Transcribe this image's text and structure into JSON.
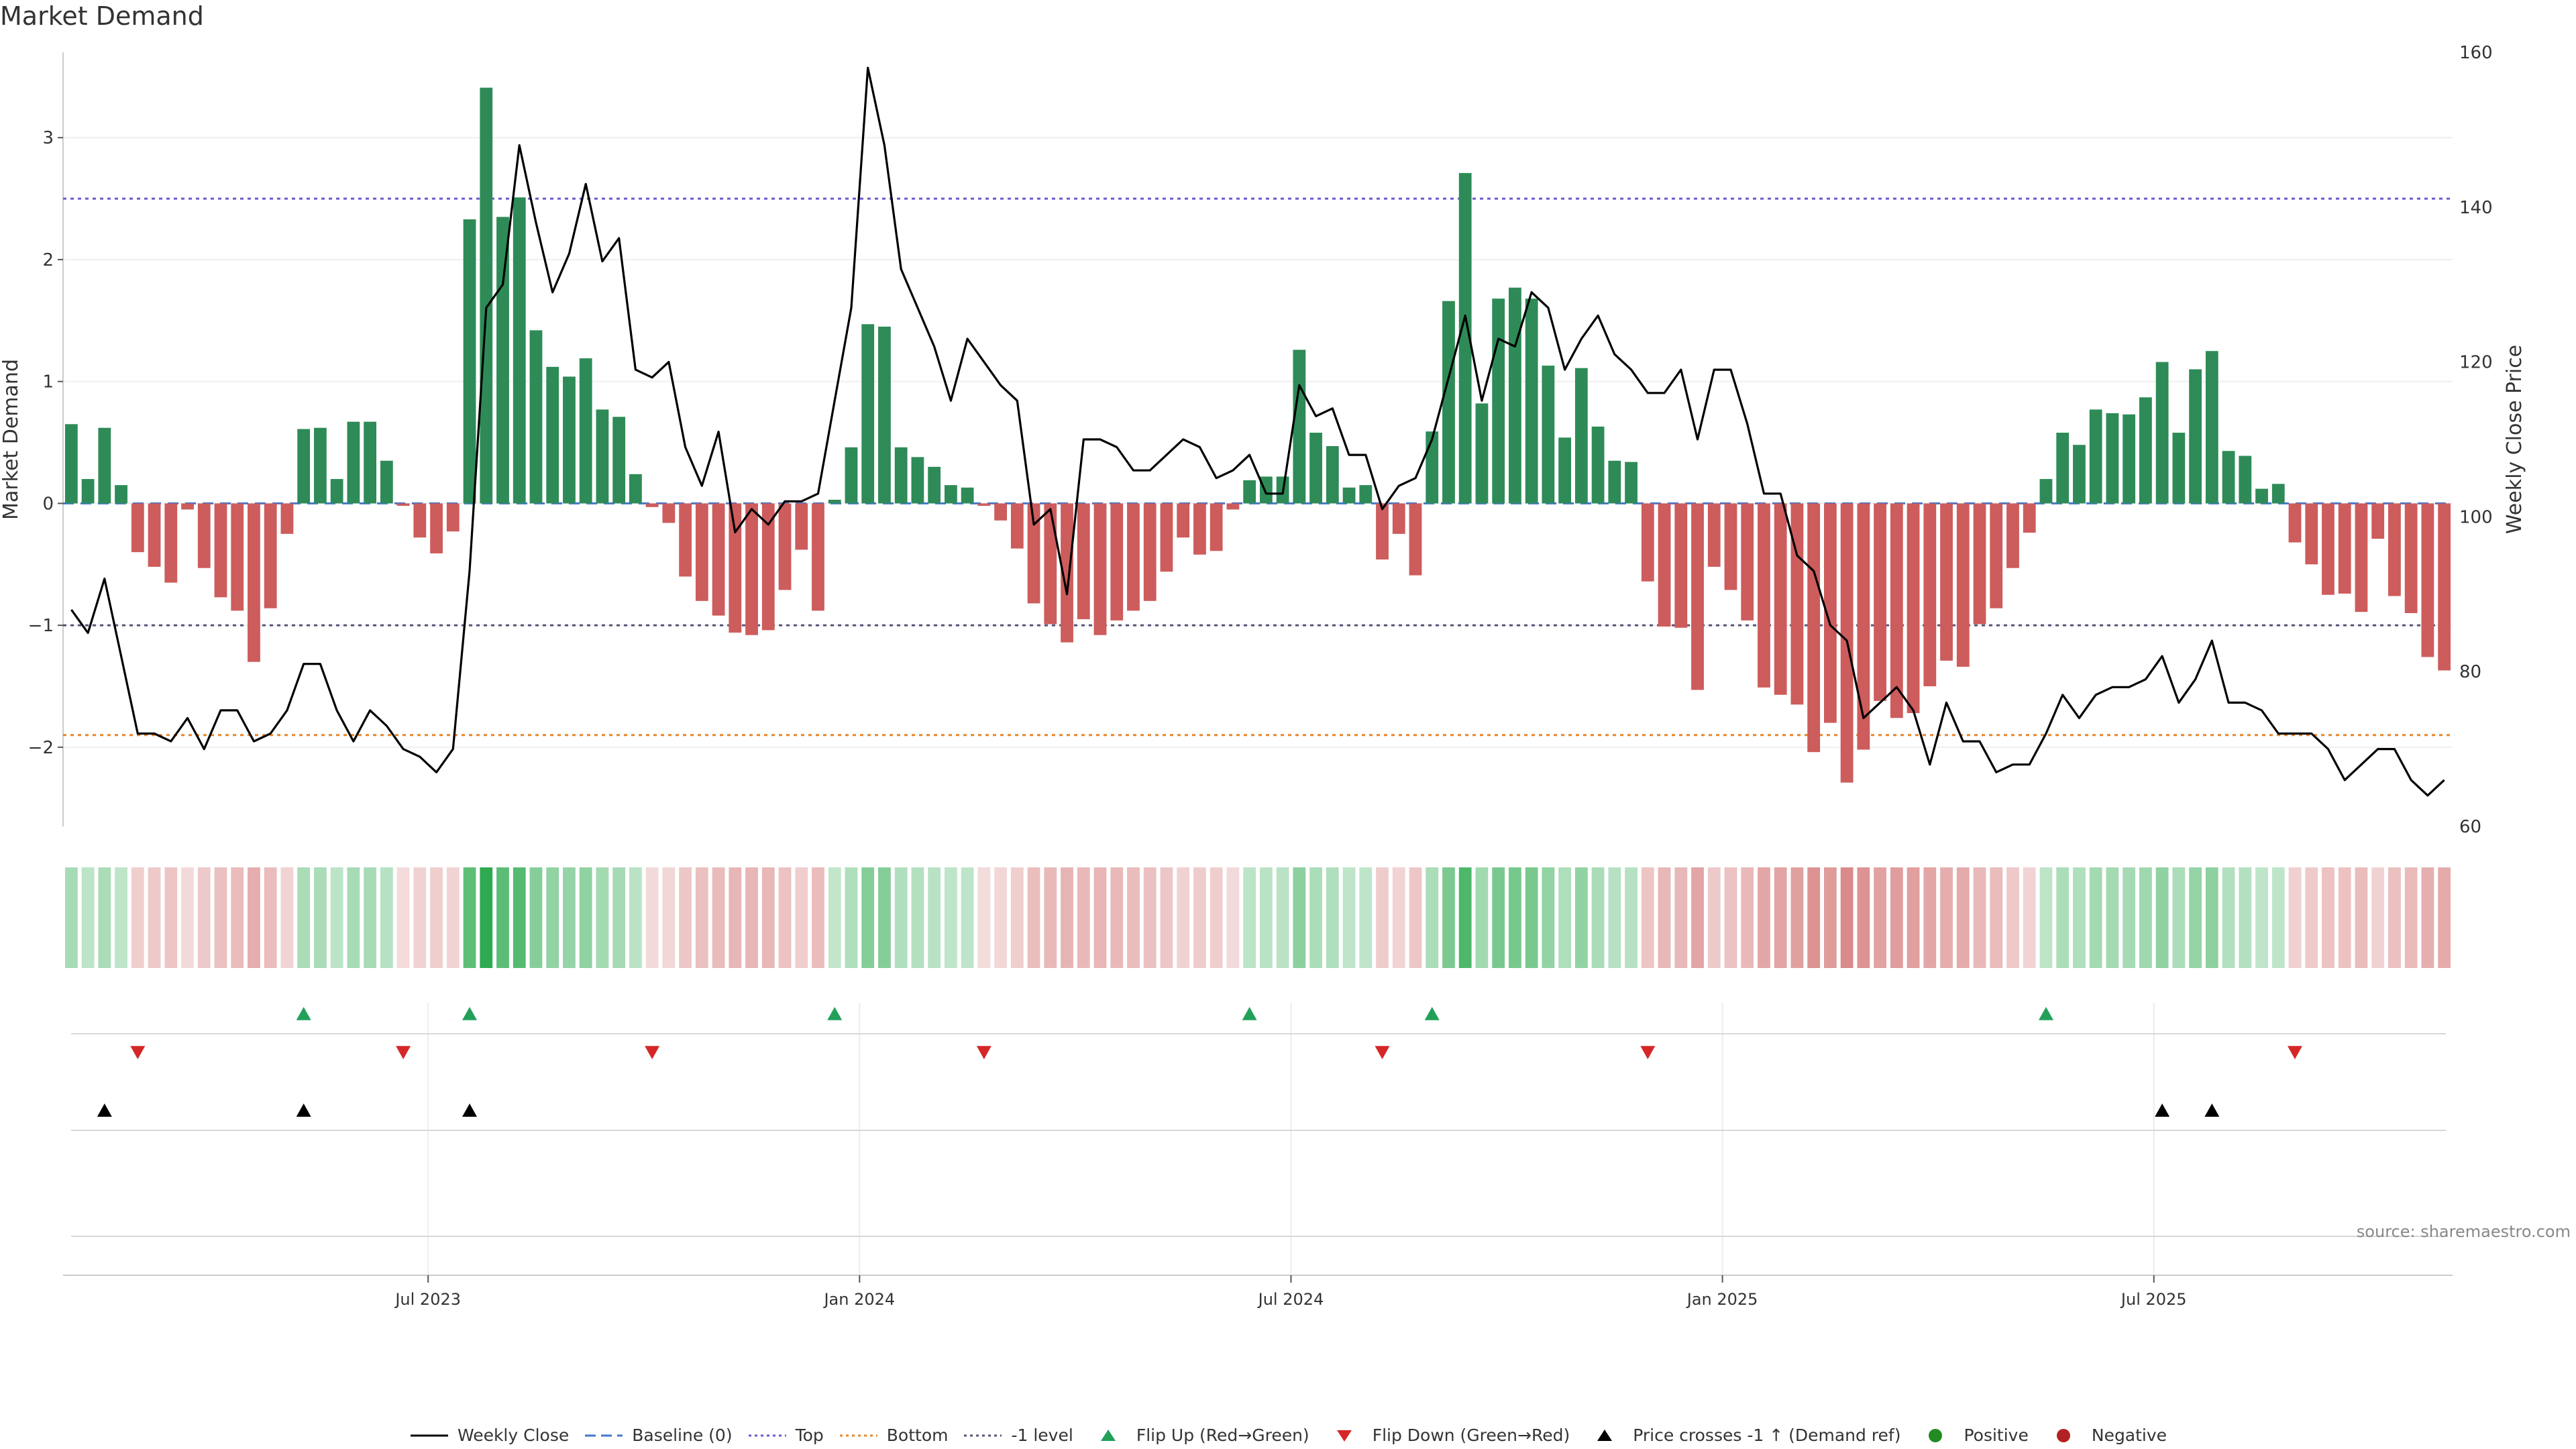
{
  "title": "Market Demand",
  "source": "source: sharemaestro.com",
  "colors": {
    "positive": "#2e8b57",
    "negative": "#cd5c5c",
    "price": "#000000",
    "baseline": "#4477cc",
    "top": "#6a5acd",
    "bottom": "#e8862a",
    "minus1": "#555577",
    "flip_up": "#22a05a",
    "flip_down": "#d62728",
    "cross": "#000000",
    "legend_positive": "#228b22",
    "legend_negative": "#b22222"
  },
  "legend": [
    {
      "key": "weekly_close",
      "label": "Weekly Close",
      "style": "line"
    },
    {
      "key": "baseline",
      "label": "Baseline (0)",
      "style": "dash"
    },
    {
      "key": "top",
      "label": "Top",
      "style": "dot"
    },
    {
      "key": "bottom",
      "label": "Bottom",
      "style": "dot"
    },
    {
      "key": "minus1",
      "label": "-1 level",
      "style": "dot"
    },
    {
      "key": "flip_up",
      "label": "Flip Up (Red→Green)",
      "style": "tri-up"
    },
    {
      "key": "flip_down",
      "label": "Flip Down (Green→Red)",
      "style": "tri-down"
    },
    {
      "key": "cross",
      "label": "Price crosses -1 ↑ (Demand ref)",
      "style": "tri-up"
    },
    {
      "key": "positive",
      "label": "Positive",
      "style": "circle"
    },
    {
      "key": "negative",
      "label": "Negative",
      "style": "circle"
    }
  ],
  "chart_data": {
    "type": "bar",
    "ylabel": "Market Demand",
    "y2label": "Weekly Close Price",
    "ylim": [
      -2.65,
      3.7
    ],
    "y2lim": [
      60,
      160
    ],
    "yticks": [
      3,
      2,
      1,
      0,
      -1,
      -2
    ],
    "yticklabels": [
      "3",
      "2",
      "1",
      "0",
      "−1",
      "−2"
    ],
    "y2ticks": [
      160,
      140,
      120,
      100,
      80,
      60
    ],
    "levels": {
      "top": 2.5,
      "bottom": -1.9,
      "minus1": -1.0,
      "baseline": 0
    },
    "xtick_labels": [
      "Jul 2023",
      "Jan 2024",
      "Jul 2024",
      "Jan 2025",
      "Jul 2025"
    ],
    "xtick_week_index": [
      22,
      48,
      74,
      100,
      126
    ],
    "week_count": 144,
    "series": [
      {
        "name": "Market Demand",
        "values": [
          0.65,
          0.2,
          0.62,
          0.15,
          -0.4,
          -0.52,
          -0.65,
          -0.05,
          -0.53,
          -0.77,
          -0.88,
          -1.3,
          -0.86,
          -0.25,
          0.61,
          0.62,
          0.2,
          0.67,
          0.67,
          0.35,
          -0.02,
          -0.28,
          -0.41,
          -0.23,
          2.33,
          3.41,
          2.35,
          2.51,
          1.42,
          1.12,
          1.04,
          1.19,
          0.77,
          0.71,
          0.24,
          -0.03,
          -0.16,
          -0.6,
          -0.8,
          -0.92,
          -1.06,
          -1.08,
          -1.04,
          -0.71,
          -0.38,
          -0.88,
          0.03,
          0.46,
          1.47,
          1.45,
          0.46,
          0.38,
          0.3,
          0.15,
          0.13,
          -0.02,
          -0.14,
          -0.37,
          -0.82,
          -0.99,
          -1.14,
          -0.95,
          -1.08,
          -0.96,
          -0.88,
          -0.8,
          -0.56,
          -0.28,
          -0.42,
          -0.39,
          -0.05,
          0.19,
          0.22,
          0.22,
          1.26,
          0.58,
          0.47,
          0.13,
          0.15,
          -0.46,
          -0.25,
          -0.59,
          0.59,
          1.66,
          2.71,
          0.82,
          1.68,
          1.77,
          1.68,
          1.13,
          0.54,
          1.11,
          0.63,
          0.35,
          0.34,
          -0.64,
          -1.01,
          -1.02,
          -1.53,
          -0.52,
          -0.71,
          -0.96,
          -1.51,
          -1.57,
          -1.65,
          -2.04,
          -1.8,
          -2.29,
          -2.02,
          -1.62,
          -1.76,
          -1.72,
          -1.5,
          -1.29,
          -1.34,
          -0.99,
          -0.86,
          -0.53,
          -0.24,
          0.2,
          0.58,
          0.48,
          0.77,
          0.74,
          0.73,
          0.87,
          1.16,
          0.58,
          1.1,
          1.25,
          0.43,
          0.39,
          0.12,
          0.16,
          -0.32,
          -0.5,
          -0.75,
          -0.74,
          -0.89,
          -0.29,
          -0.76,
          -0.9,
          -1.26,
          -1.37
        ]
      },
      {
        "name": "Weekly Close",
        "values": [
          88,
          85,
          92,
          82,
          72,
          72,
          71,
          74,
          70,
          75,
          75,
          71,
          72,
          75,
          81,
          81,
          75,
          71,
          75,
          73,
          70,
          69,
          67,
          70,
          93,
          127,
          130,
          148,
          138,
          129,
          134,
          143,
          133,
          136,
          119,
          118,
          120,
          109,
          104,
          111,
          98,
          101,
          99,
          102,
          102,
          103,
          115,
          127,
          158,
          148,
          132,
          127,
          122,
          115,
          123,
          120,
          117,
          115,
          99,
          101,
          90,
          110,
          110,
          109,
          106,
          106,
          108,
          110,
          109,
          105,
          106,
          108,
          103,
          103,
          117,
          113,
          114,
          108,
          108,
          101,
          104,
          105,
          110,
          118,
          126,
          115,
          123,
          122,
          129,
          127,
          119,
          123,
          126,
          121,
          119,
          116,
          116,
          119,
          110,
          119,
          119,
          112,
          103,
          103,
          95,
          93,
          86,
          84,
          74,
          76,
          78,
          75,
          68,
          76,
          71,
          71,
          67,
          68,
          68,
          72,
          77,
          74,
          77,
          78,
          78,
          79,
          82,
          76,
          79,
          84,
          76,
          76,
          75,
          72,
          72,
          72,
          70,
          66,
          68,
          70,
          70,
          66,
          64,
          66
        ]
      }
    ]
  }
}
